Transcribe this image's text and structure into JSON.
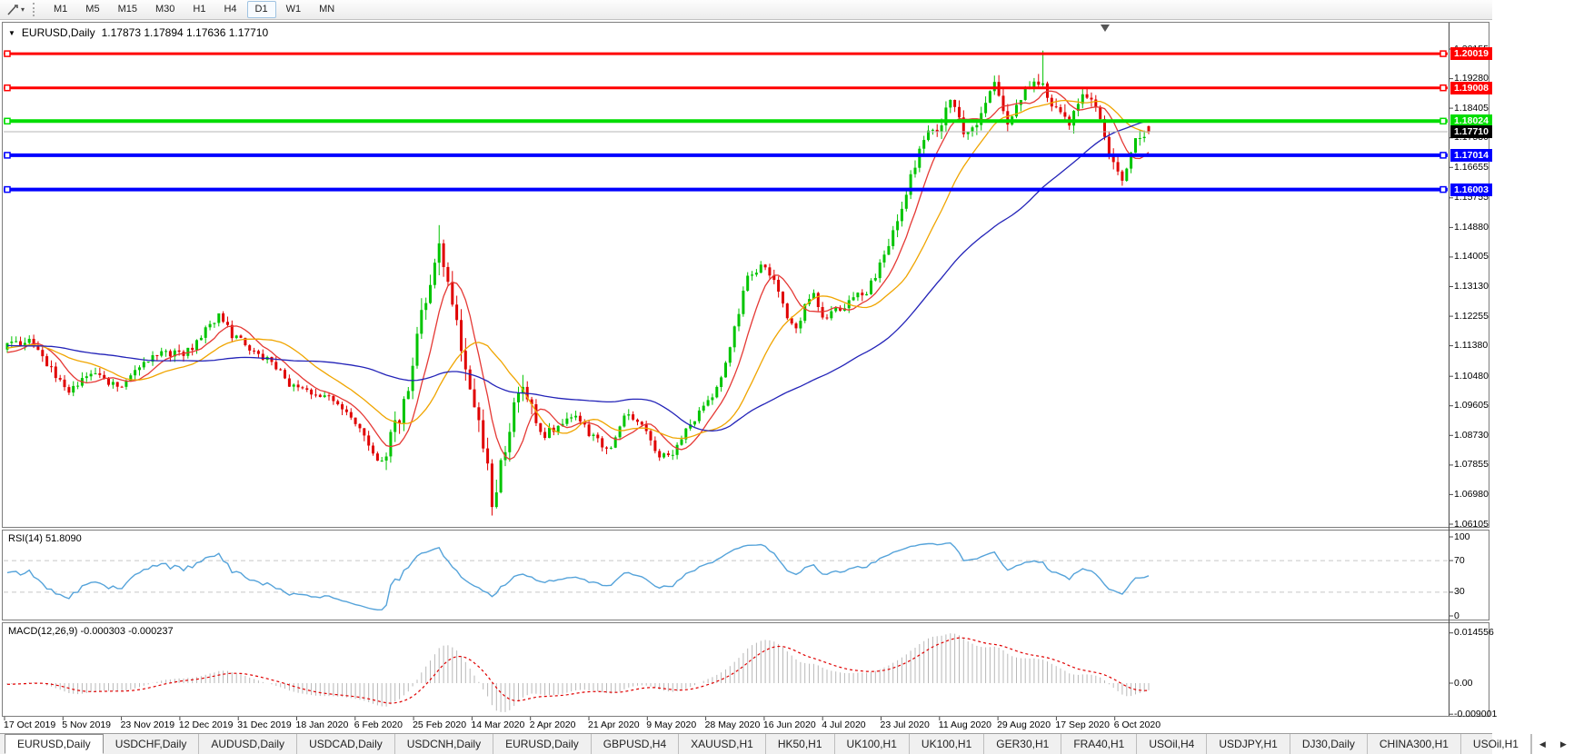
{
  "toolbar": {
    "timeframes": [
      {
        "label": "M1",
        "active": false
      },
      {
        "label": "M5",
        "active": false
      },
      {
        "label": "M15",
        "active": false
      },
      {
        "label": "M30",
        "active": false
      },
      {
        "label": "H1",
        "active": false
      },
      {
        "label": "H4",
        "active": false
      },
      {
        "label": "D1",
        "active": true
      },
      {
        "label": "W1",
        "active": false
      },
      {
        "label": "MN",
        "active": false
      }
    ]
  },
  "chart": {
    "collapse_arrow": "▼",
    "symbol_period": "EURUSD,Daily",
    "ohlc_text": "1.17873 1.17894 1.17636 1.17710"
  },
  "chart_data": {
    "type": "candlestick",
    "symbol": "EURUSD",
    "period": "Daily",
    "quote": {
      "open": 1.17873,
      "high": 1.17894,
      "low": 1.17636,
      "close": 1.1771
    },
    "price_ticks": [
      "1.20155",
      "1.19280",
      "1.18405",
      "1.17530",
      "1.16655",
      "1.15755",
      "1.14880",
      "1.14005",
      "1.13130",
      "1.12255",
      "1.11380",
      "1.10480",
      "1.09605",
      "1.08730",
      "1.07855",
      "1.06980",
      "1.06105"
    ],
    "horizontal_lines": [
      {
        "price": 1.20019,
        "label": "1.20019",
        "color": "#ff0000",
        "width": 3
      },
      {
        "price": 1.19008,
        "label": "1.19008",
        "color": "#ff0000",
        "width": 3
      },
      {
        "price": 1.18024,
        "label": "1.18024",
        "color": "#00dd00",
        "width": 4
      },
      {
        "price": 1.17014,
        "label": "1.17014",
        "color": "#0000ff",
        "width": 4
      },
      {
        "price": 1.16003,
        "label": "1.16003",
        "color": "#0000ff",
        "width": 4
      }
    ],
    "current_price_line": {
      "price": 1.1771,
      "label": "1.17710",
      "line_color": "#b4b4b4",
      "tag_bg": "#000000"
    },
    "date_labels": [
      "17 Oct 2019",
      "5 Nov 2019",
      "23 Nov 2019",
      "12 Dec 2019",
      "31 Dec 2019",
      "18 Jan 2020",
      "6 Feb 2020",
      "25 Feb 2020",
      "14 Mar 2020",
      "2 Apr 2020",
      "21 Apr 2020",
      "9 May 2020",
      "28 May 2020",
      "16 Jun 2020",
      "4 Jul 2020",
      "23 Jul 2020",
      "11 Aug 2020",
      "29 Aug 2020",
      "17 Sep 2020",
      "6 Oct 2020"
    ],
    "num_candles": 260,
    "pre_history": 60,
    "close_path_anchors": [
      [
        0.0,
        1.114
      ],
      [
        0.019,
        1.116
      ],
      [
        0.054,
        1.0995
      ],
      [
        0.077,
        1.1065
      ],
      [
        0.096,
        1.1015
      ],
      [
        0.115,
        1.107
      ],
      [
        0.135,
        1.1125
      ],
      [
        0.154,
        1.1105
      ],
      [
        0.185,
        1.1225
      ],
      [
        0.2,
        1.116
      ],
      [
        0.223,
        1.111
      ],
      [
        0.25,
        1.102
      ],
      [
        0.273,
        1.0995
      ],
      [
        0.3,
        1.0945
      ],
      [
        0.327,
        1.079
      ],
      [
        0.34,
        1.09
      ],
      [
        0.35,
        1.1
      ],
      [
        0.365,
        1.126
      ],
      [
        0.378,
        1.144
      ],
      [
        0.388,
        1.129
      ],
      [
        0.4,
        1.111
      ],
      [
        0.414,
        1.09
      ],
      [
        0.425,
        1.068
      ],
      [
        0.435,
        1.082
      ],
      [
        0.447,
        1.103
      ],
      [
        0.458,
        1.099
      ],
      [
        0.469,
        1.0865
      ],
      [
        0.485,
        1.0915
      ],
      [
        0.5,
        1.0935
      ],
      [
        0.512,
        1.087
      ],
      [
        0.527,
        1.082
      ],
      [
        0.542,
        1.0945
      ],
      [
        0.556,
        1.09
      ],
      [
        0.57,
        1.082
      ],
      [
        0.581,
        1.0815
      ],
      [
        0.6,
        1.092
      ],
      [
        0.617,
        1.0975
      ],
      [
        0.633,
        1.113
      ],
      [
        0.648,
        1.134
      ],
      [
        0.665,
        1.138
      ],
      [
        0.68,
        1.125
      ],
      [
        0.691,
        1.118
      ],
      [
        0.704,
        1.13
      ],
      [
        0.716,
        1.122
      ],
      [
        0.729,
        1.125
      ],
      [
        0.744,
        1.128
      ],
      [
        0.758,
        1.132
      ],
      [
        0.772,
        1.144
      ],
      [
        0.787,
        1.158
      ],
      [
        0.801,
        1.175
      ],
      [
        0.815,
        1.178
      ],
      [
        0.828,
        1.1865
      ],
      [
        0.84,
        1.1745
      ],
      [
        0.852,
        1.181
      ],
      [
        0.863,
        1.193
      ],
      [
        0.874,
        1.18
      ],
      [
        0.886,
        1.184
      ],
      [
        0.898,
        1.1935
      ],
      [
        0.906,
        1.1915
      ],
      [
        0.918,
        1.184
      ],
      [
        0.93,
        1.18
      ],
      [
        0.942,
        1.1865
      ],
      [
        0.953,
        1.1845
      ],
      [
        0.965,
        1.1705
      ],
      [
        0.977,
        1.1635
      ],
      [
        0.987,
        1.173
      ],
      [
        0.995,
        1.1765
      ],
      [
        1.0,
        1.1771
      ]
    ],
    "wick_events": [
      {
        "f": 0.378,
        "side": "high",
        "price": 1.1495
      },
      {
        "f": 0.425,
        "side": "low",
        "price": 1.0636
      },
      {
        "f": 0.906,
        "side": "high",
        "price": 1.2011
      },
      {
        "f": 0.977,
        "side": "low",
        "price": 1.1612
      }
    ],
    "volatility": {
      "base": 0.0016,
      "zones": [
        {
          "from": 0.33,
          "to": 0.47,
          "mult": 2.2
        },
        {
          "from": 0.75,
          "to": 1.01,
          "mult": 1.35
        }
      ]
    },
    "candle_colors": {
      "up": "#00c400",
      "down": "#e00000"
    },
    "moving_averages": [
      {
        "name": "fast",
        "period": 8,
        "color": "#e53935"
      },
      {
        "name": "medium",
        "period": 20,
        "color": "#f0a500"
      },
      {
        "name": "slow",
        "period": 55,
        "color": "#2323b8"
      }
    ],
    "rsi": {
      "label": "RSI(14) 51.8090",
      "period": 14,
      "value": "51.8090",
      "ticks": [
        "100",
        "70",
        "30",
        "0"
      ],
      "levels": [
        70,
        30
      ],
      "line_color": "#55a3da",
      "level_color": "#c8c8c8"
    },
    "macd": {
      "label": "MACD(12,26,9) -0.000303 -0.000237",
      "fast": 12,
      "slow": 26,
      "signal": 9,
      "values": [
        "-0.000303",
        "-0.000237"
      ],
      "ticks": [
        "0.014556",
        "0.00",
        "-0.009001"
      ],
      "hist_color": "#b8b8b8",
      "signal_color": "#e00000"
    }
  },
  "tabs": {
    "items": [
      {
        "label": "EURUSD,Daily",
        "active": true
      },
      {
        "label": "USDCHF,Daily",
        "active": false
      },
      {
        "label": "AUDUSD,Daily",
        "active": false
      },
      {
        "label": "USDCAD,Daily",
        "active": false
      },
      {
        "label": "USDCNH,Daily",
        "active": false
      },
      {
        "label": "EURUSD,Daily",
        "active": false
      },
      {
        "label": "GBPUSD,H4",
        "active": false
      },
      {
        "label": "XAUUSD,H1",
        "active": false
      },
      {
        "label": "HK50,H1",
        "active": false
      },
      {
        "label": "UK100,H1",
        "active": false
      },
      {
        "label": "UK100,H1",
        "active": false
      },
      {
        "label": "GER30,H1",
        "active": false
      },
      {
        "label": "FRA40,H1",
        "active": false
      },
      {
        "label": "USOil,H4",
        "active": false
      },
      {
        "label": "USDJPY,H1",
        "active": false
      },
      {
        "label": "DJ30,Daily",
        "active": false
      },
      {
        "label": "CHINA300,H1",
        "active": false
      },
      {
        "label": "USOil,H1",
        "active": false
      }
    ],
    "scroll_left": "◀",
    "scroll_right": "▶"
  }
}
